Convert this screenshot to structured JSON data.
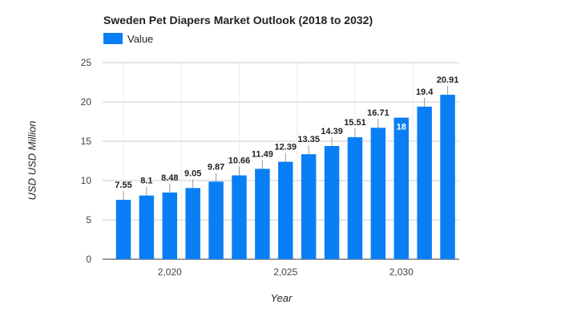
{
  "chart_data": {
    "type": "bar",
    "title": "Sweden Pet Diapers Market Outlook (2018 to 2032)",
    "xlabel": "Year",
    "ylabel": "USD USD Million",
    "legend": {
      "position": "top-left",
      "entries": [
        "Value"
      ]
    },
    "series": [
      {
        "name": "Value",
        "color": "#0a7ff5",
        "x": [
          2018,
          2019,
          2020,
          2021,
          2022,
          2023,
          2024,
          2025,
          2026,
          2027,
          2028,
          2029,
          2030,
          2031,
          2032
        ],
        "values": [
          7.55,
          8.1,
          8.48,
          9.05,
          9.87,
          10.66,
          11.49,
          12.39,
          13.35,
          14.39,
          15.51,
          16.71,
          18,
          19.4,
          20.91
        ],
        "data_labels": [
          "7.55",
          "8.1",
          "8.48",
          "9.05",
          "9.87",
          "10.66",
          "11.49",
          "12.39",
          "13.35",
          "14.39",
          "15.51",
          "16.71",
          "18",
          "19.4",
          "20.91"
        ]
      }
    ],
    "ylim": [
      0,
      25
    ],
    "yticks": [
      0,
      5,
      10,
      15,
      20,
      25
    ],
    "ytick_labels": [
      "0",
      "5",
      "10",
      "15",
      "20",
      "25"
    ],
    "xticks": [
      2020,
      2025,
      2030
    ],
    "xtick_labels": [
      "2,020",
      "2,025",
      "2,030"
    ],
    "grid": true,
    "colors": {
      "bar": "#0a7ff5",
      "grid": "#cccccc",
      "axis_text": "#444444",
      "label_text": "#222222",
      "inside_label_text": "#ffffff"
    }
  }
}
